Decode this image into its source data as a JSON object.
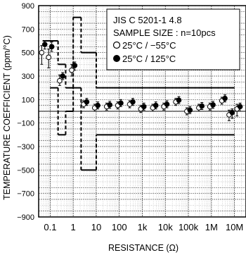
{
  "chart_data": {
    "type": "scatter",
    "title": "",
    "xlabel": "RESISTANCE (Ω)",
    "ylabel": "TEMPERATURE COEFFICIENT (ppm/°C)",
    "xscale": "log",
    "ylim": [
      -900,
      900
    ],
    "yticks": [
      900,
      700,
      500,
      300,
      100,
      -100,
      -300,
      -500,
      -700,
      -900
    ],
    "xticks": [
      {
        "value": 0.1,
        "label": "0.1"
      },
      {
        "value": 1,
        "label": "1"
      },
      {
        "value": 10,
        "label": "10"
      },
      {
        "value": 100,
        "label": "100"
      },
      {
        "value": 1000,
        "label": "1k"
      },
      {
        "value": 10000,
        "label": "10k"
      },
      {
        "value": 100000,
        "label": "100k"
      },
      {
        "value": 1000000,
        "label": "1M"
      },
      {
        "value": 10000000,
        "label": "10M"
      }
    ],
    "grid": true,
    "legend": {
      "placement": "top-right",
      "standard": "JIS C 5201-1 4.8",
      "sample_size": "SAMPLE SIZE : n=10pcs",
      "entries": [
        {
          "marker": "open-circle",
          "label": "25°C / −55°C"
        },
        {
          "marker": "filled-circle",
          "label": "25°C / 125°C"
        }
      ]
    },
    "limit_lines": {
      "upper": [
        {
          "x": [
            0.047,
            0.1
          ],
          "y": 600
        },
        {
          "x": [
            0.1,
            0.22
          ],
          "y": 600
        },
        {
          "x": [
            0.22,
            0.47
          ],
          "y": 400
        },
        {
          "x": [
            0.47,
            1
          ],
          "y": 200
        },
        {
          "x": [
            1,
            2.2
          ],
          "y": 800
        },
        {
          "x": [
            2.2,
            10
          ],
          "y": 500
        },
        {
          "x": [
            10,
            10000000
          ],
          "y": 200
        }
      ],
      "lower": [
        {
          "x": [
            0.1,
            0.22
          ],
          "y": 200
        },
        {
          "x": [
            0.22,
            0.47
          ],
          "y": -200
        },
        {
          "x": [
            0.47,
            1
          ],
          "y": 0
        },
        {
          "x": [
            1,
            2.2
          ],
          "y": 200
        },
        {
          "x": [
            2.2,
            10
          ],
          "y": -500
        },
        {
          "x": [
            10,
            10000000
          ],
          "y": -200
        }
      ]
    },
    "series": [
      {
        "name": "25°C / −55°C",
        "marker": "open-circle",
        "points": [
          {
            "x": 0.05,
            "y": 500,
            "min": 400,
            "max": 560
          },
          {
            "x": 0.1,
            "y": 460,
            "min": 370,
            "max": 530
          },
          {
            "x": 0.3,
            "y": 260,
            "min": 220,
            "max": 310
          },
          {
            "x": 1,
            "y": 350,
            "min": 300,
            "max": 400
          },
          {
            "x": 3.3,
            "y": 60,
            "min": 30,
            "max": 90
          },
          {
            "x": 10,
            "y": 30,
            "min": 0,
            "max": 60
          },
          {
            "x": 33,
            "y": 40,
            "min": 10,
            "max": 70
          },
          {
            "x": 100,
            "y": 50,
            "min": 20,
            "max": 80
          },
          {
            "x": 330,
            "y": 60,
            "min": 30,
            "max": 90
          },
          {
            "x": 1000,
            "y": 20,
            "min": -10,
            "max": 50
          },
          {
            "x": 3300,
            "y": 30,
            "min": 0,
            "max": 60
          },
          {
            "x": 10000,
            "y": 40,
            "min": 10,
            "max": 70
          },
          {
            "x": 33000,
            "y": 80,
            "min": 50,
            "max": 110
          },
          {
            "x": 100000,
            "y": 0,
            "min": -30,
            "max": 30
          },
          {
            "x": 330000,
            "y": 30,
            "min": 0,
            "max": 60
          },
          {
            "x": 1000000,
            "y": 40,
            "min": 10,
            "max": 70
          },
          {
            "x": 3300000,
            "y": 90,
            "min": 60,
            "max": 120
          },
          {
            "x": 6800000,
            "y": -30,
            "min": -80,
            "max": 10
          },
          {
            "x": 15000000,
            "y": 20,
            "min": -40,
            "max": 60
          }
        ]
      },
      {
        "name": "25°C / 125°C",
        "marker": "filled-circle",
        "points": [
          {
            "x": 0.05,
            "y": 570,
            "min": 530,
            "max": 600
          },
          {
            "x": 0.1,
            "y": 550,
            "min": 510,
            "max": 590
          },
          {
            "x": 0.3,
            "y": 300,
            "min": 270,
            "max": 330
          },
          {
            "x": 1,
            "y": 390,
            "min": 350,
            "max": 420
          },
          {
            "x": 3.3,
            "y": 80,
            "min": 50,
            "max": 110
          },
          {
            "x": 10,
            "y": 50,
            "min": 20,
            "max": 80
          },
          {
            "x": 33,
            "y": 55,
            "min": 25,
            "max": 85
          },
          {
            "x": 100,
            "y": 70,
            "min": 40,
            "max": 100
          },
          {
            "x": 330,
            "y": 80,
            "min": 50,
            "max": 110
          },
          {
            "x": 1000,
            "y": 40,
            "min": 10,
            "max": 70
          },
          {
            "x": 3300,
            "y": 50,
            "min": 20,
            "max": 80
          },
          {
            "x": 10000,
            "y": 60,
            "min": 30,
            "max": 90
          },
          {
            "x": 33000,
            "y": 95,
            "min": 65,
            "max": 125
          },
          {
            "x": 100000,
            "y": 10,
            "min": -20,
            "max": 40
          },
          {
            "x": 330000,
            "y": 45,
            "min": 15,
            "max": 75
          },
          {
            "x": 1000000,
            "y": 55,
            "min": 25,
            "max": 85
          },
          {
            "x": 3300000,
            "y": 110,
            "min": 80,
            "max": 140
          },
          {
            "x": 6800000,
            "y": -10,
            "min": -60,
            "max": 20
          },
          {
            "x": 15000000,
            "y": 40,
            "min": 0,
            "max": 70
          }
        ]
      }
    ]
  }
}
